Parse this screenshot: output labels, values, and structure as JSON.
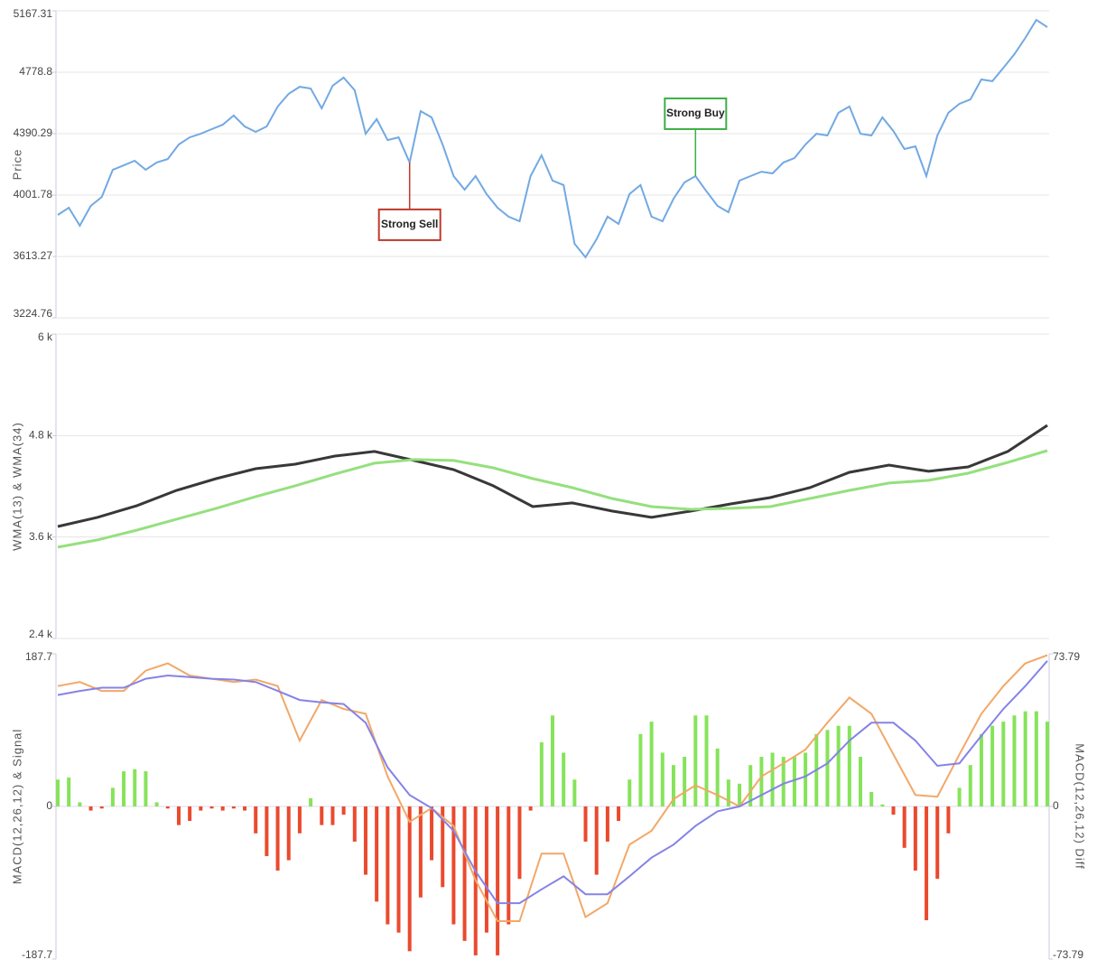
{
  "chart_data": [
    {
      "type": "line",
      "ylabel": "Price",
      "ylim": [
        3224.76,
        5167.31
      ],
      "yticks": [
        5167.31,
        4778.8,
        4390.29,
        4001.78,
        3613.27,
        3224.76
      ],
      "grid": true,
      "series": [
        {
          "color": "#72a9e3",
          "values": [
            3876,
            3922,
            3808,
            3933,
            3990,
            4162,
            4190,
            4219,
            4162,
            4208,
            4230,
            4322,
            4367,
            4390,
            4419,
            4447,
            4505,
            4436,
            4402,
            4436,
            4562,
            4642,
            4687,
            4676,
            4550,
            4693,
            4745,
            4665,
            4390,
            4482,
            4350,
            4367,
            4208,
            4533,
            4493,
            4322,
            4122,
            4036,
            4122,
            4008,
            3922,
            3865,
            3836,
            4122,
            4253,
            4093,
            4065,
            3693,
            3608,
            3722,
            3865,
            3819,
            4008,
            4065,
            3865,
            3836,
            3979,
            4082,
            4122,
            4025,
            3933,
            3893,
            4093,
            4122,
            4150,
            4139,
            4208,
            4236,
            4322,
            4390,
            4379,
            4522,
            4562,
            4390,
            4379,
            4493,
            4407,
            4293,
            4310,
            4122,
            4379,
            4522,
            4579,
            4607,
            4733,
            4722,
            4807,
            4893,
            4996,
            5110,
            5064
          ]
        }
      ],
      "annotations": [
        {
          "text": "Strong Sell",
          "x": 32,
          "color": "#c0392b"
        },
        {
          "text": "Strong Buy",
          "x": 58,
          "color": "#3cb043"
        }
      ]
    },
    {
      "type": "line",
      "ylabel": "WMA(13) & WMA(34)",
      "ylim": [
        2400,
        6000
      ],
      "yticks": [
        {
          "value": 6000,
          "label": "6 k"
        },
        {
          "value": 4800,
          "label": "4.8 k"
        },
        {
          "value": 3600,
          "label": "3.6 k"
        },
        {
          "value": 2400,
          "label": "2.4 k"
        }
      ],
      "grid": true,
      "series": [
        {
          "color": "#383838",
          "values": [
            3725,
            3832,
            3971,
            4152,
            4291,
            4408,
            4462,
            4558,
            4612,
            4505,
            4398,
            4206,
            3960,
            4003,
            3907,
            3832,
            3907,
            3992,
            4067,
            4184,
            4366,
            4451,
            4377,
            4430,
            4612,
            4921
          ]
        },
        {
          "color": "#95e07e",
          "values": [
            3480,
            3565,
            3682,
            3811,
            3939,
            4078,
            4206,
            4345,
            4473,
            4516,
            4505,
            4419,
            4291,
            4184,
            4056,
            3960,
            3928,
            3939,
            3960,
            4056,
            4152,
            4238,
            4270,
            4355,
            4483,
            4622
          ]
        }
      ]
    },
    {
      "type": "combo",
      "ylabel": "MACD(12,26,12) & Signal",
      "y2label": "MACD(12,26,12) Diff",
      "ylim": [
        -187.7,
        187.7
      ],
      "yticks": [
        187.7,
        0,
        -187.7
      ],
      "y2lim": [
        -73.79,
        73.79
      ],
      "y2ticks": [
        73.79,
        0,
        -73.79
      ],
      "grid": false,
      "series": [
        {
          "type": "line",
          "color": "#f2a868",
          "values": [
            148,
            153,
            142,
            142,
            167,
            176,
            161,
            157,
            153,
            156,
            148,
            81,
            131,
            120,
            114,
            37,
            -19,
            -2,
            -24,
            -91,
            -141,
            -141,
            -58,
            -58,
            -136,
            -119,
            -47,
            -30,
            9,
            26,
            14,
            0,
            37,
            53,
            70,
            103,
            134,
            114,
            64,
            14,
            12,
            64,
            114,
            148,
            176,
            186
          ]
        },
        {
          "type": "line",
          "color": "#8583e6",
          "values": [
            137,
            142,
            146,
            146,
            157,
            161,
            159,
            157,
            156,
            153,
            142,
            131,
            128,
            126,
            103,
            48,
            14,
            -2,
            -30,
            -80,
            -119,
            -119,
            -102,
            -86,
            -108,
            -108,
            -86,
            -63,
            -47,
            -24,
            -6,
            0,
            14,
            28,
            37,
            53,
            81,
            103,
            103,
            81,
            50,
            53,
            87,
            120,
            148,
            179
          ]
        },
        {
          "type": "bar",
          "axis": "y2",
          "positive_color": "#86e35a",
          "negative_color": "#ea4a2e",
          "values": [
            13,
            14,
            2,
            -2,
            -1,
            9,
            17,
            18,
            17,
            2,
            -1,
            -9,
            -7,
            -2,
            -1,
            -2,
            -1,
            -2,
            -13,
            -24,
            -31,
            -26,
            -13,
            4,
            -9,
            -9,
            -4,
            -17,
            -33,
            -46,
            -57,
            -61,
            -70,
            -44,
            -26,
            -39,
            -57,
            -65,
            -72,
            -61,
            -72,
            -57,
            -35,
            -2,
            31,
            44,
            26,
            13,
            -17,
            -33,
            -17,
            -7,
            13,
            35,
            41,
            26,
            20,
            24,
            44,
            44,
            28,
            13,
            11,
            20,
            24,
            26,
            24,
            24,
            26,
            35,
            37,
            39,
            39,
            24,
            7,
            1,
            -4,
            -20,
            -31,
            -55,
            -35,
            -13,
            9,
            20,
            35,
            39,
            41,
            44,
            46,
            46,
            41
          ]
        }
      ]
    }
  ]
}
